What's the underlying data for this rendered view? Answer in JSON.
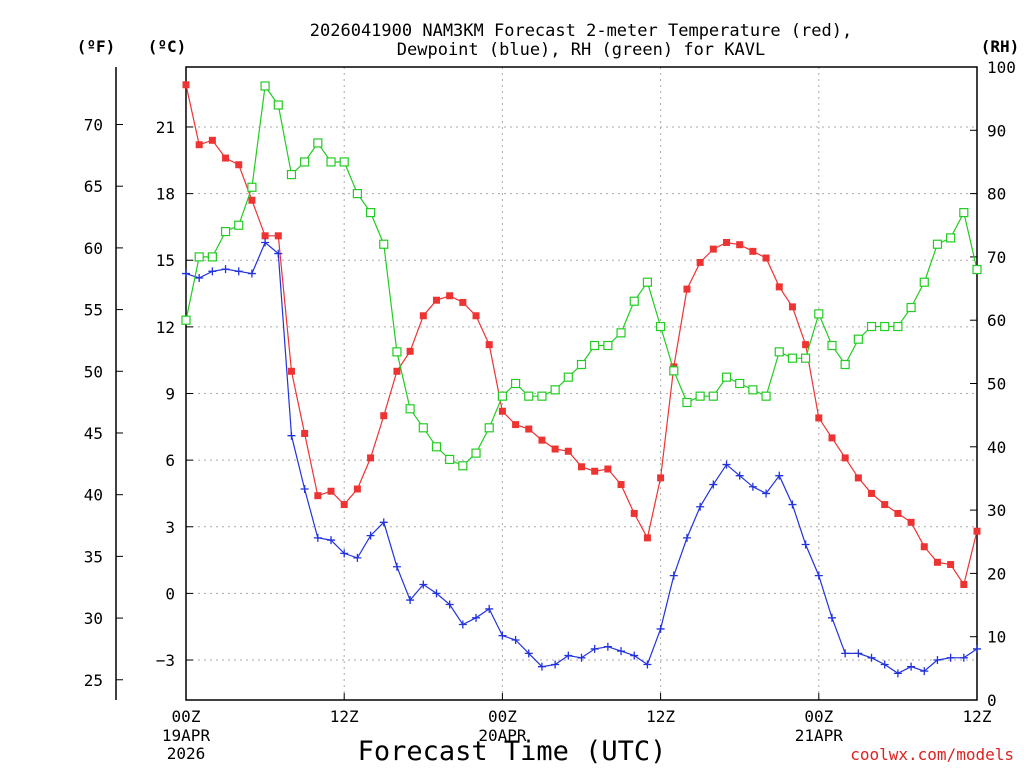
{
  "chart_data": {
    "type": "line",
    "title_line1": "2026041900 NAM3KM Forecast 2-meter Temperature (red),",
    "title_line2": "Dewpoint (blue), RH (green) for KAVL",
    "xlabel": "Forecast Time (UTC)",
    "credit": "coolwx.com/models",
    "unit_labels": {
      "fahrenheit": "(ºF)",
      "celsius": "(ºC)",
      "rh": "(RH)"
    },
    "x_hours": [
      0,
      1,
      2,
      3,
      4,
      5,
      6,
      7,
      8,
      9,
      10,
      11,
      12,
      13,
      14,
      15,
      16,
      17,
      18,
      19,
      20,
      21,
      22,
      23,
      24,
      25,
      26,
      27,
      28,
      29,
      30,
      31,
      32,
      33,
      34,
      35,
      36,
      37,
      38,
      39,
      40,
      41,
      42,
      43,
      44,
      45,
      46,
      47,
      48,
      49,
      50,
      51,
      52,
      53,
      54,
      55,
      56,
      57,
      58,
      59,
      60
    ],
    "xlim": [
      0,
      60
    ],
    "x_ticks": [
      {
        "hour": 0,
        "label": "00Z",
        "date": "19APR",
        "year": "2026"
      },
      {
        "hour": 12,
        "label": "12Z",
        "date": "",
        "year": ""
      },
      {
        "hour": 24,
        "label": "00Z",
        "date": "20APR",
        "year": ""
      },
      {
        "hour": 36,
        "label": "12Z",
        "date": "",
        "year": ""
      },
      {
        "hour": 48,
        "label": "00Z",
        "date": "21APR",
        "year": ""
      },
      {
        "hour": 60,
        "label": "12Z",
        "date": "",
        "year": ""
      }
    ],
    "y_celsius": {
      "lim": [
        -4.8,
        23.7
      ],
      "ticks": [
        -3,
        0,
        3,
        6,
        9,
        12,
        15,
        18,
        21
      ]
    },
    "y_fahrenheit": {
      "ticks": [
        25,
        30,
        35,
        40,
        45,
        50,
        55,
        60,
        65,
        70
      ]
    },
    "y_rh": {
      "lim": [
        0,
        100
      ],
      "ticks": [
        0,
        10,
        20,
        30,
        40,
        50,
        60,
        70,
        80,
        90,
        100
      ]
    },
    "series": [
      {
        "name": "Temperature",
        "unit": "C",
        "axis": "celsius",
        "color": "#ee3333",
        "marker": "filled-square",
        "values": [
          22.9,
          20.2,
          20.4,
          19.6,
          19.3,
          17.7,
          16.1,
          16.1,
          10.0,
          7.2,
          4.4,
          4.6,
          4.0,
          4.7,
          6.1,
          8.0,
          10.0,
          10.9,
          12.5,
          13.2,
          13.4,
          13.1,
          12.5,
          11.2,
          8.2,
          7.6,
          7.4,
          6.9,
          6.5,
          6.4,
          5.7,
          5.5,
          5.6,
          4.9,
          3.6,
          2.5,
          5.2,
          10.2,
          13.7,
          14.9,
          15.5,
          15.8,
          15.7,
          15.4,
          15.1,
          13.8,
          12.9,
          11.2,
          7.9,
          7.0,
          6.1,
          5.2,
          4.5,
          4.0,
          3.6,
          3.2,
          2.1,
          1.4,
          1.3,
          0.4,
          2.8
        ]
      },
      {
        "name": "Dewpoint",
        "unit": "C",
        "axis": "celsius",
        "color": "#2233dd",
        "marker": "plus",
        "values": [
          14.4,
          14.2,
          14.5,
          14.6,
          14.5,
          14.4,
          15.8,
          15.3,
          7.1,
          4.7,
          2.5,
          2.4,
          1.8,
          1.6,
          2.6,
          3.2,
          1.2,
          -0.3,
          0.4,
          0.0,
          -0.5,
          -1.4,
          -1.1,
          -0.7,
          -1.9,
          -2.1,
          -2.7,
          -3.3,
          -3.2,
          -2.8,
          -2.9,
          -2.5,
          -2.4,
          -2.6,
          -2.8,
          -3.2,
          -1.6,
          0.8,
          2.5,
          3.9,
          4.9,
          5.8,
          5.3,
          4.8,
          4.5,
          5.3,
          4.0,
          2.2,
          0.8,
          -1.1,
          -2.7,
          -2.7,
          -2.9,
          -3.2,
          -3.6,
          -3.3,
          -3.5,
          -3.0,
          -2.9,
          -2.9,
          -2.5
        ]
      },
      {
        "name": "RH",
        "unit": "%",
        "axis": "rh",
        "color": "#22cc22",
        "marker": "open-square",
        "values": [
          60,
          70,
          70,
          74,
          75,
          81,
          97,
          94,
          83,
          85,
          88,
          85,
          85,
          80,
          77,
          72,
          55,
          46,
          43,
          40,
          38,
          37,
          39,
          43,
          48,
          50,
          48,
          48,
          49,
          51,
          53,
          56,
          56,
          58,
          63,
          66,
          59,
          52,
          47,
          48,
          48,
          51,
          50,
          49,
          48,
          55,
          54,
          54,
          61,
          56,
          53,
          57,
          59,
          59,
          59,
          62,
          66,
          72,
          73,
          77,
          68
        ]
      }
    ]
  }
}
